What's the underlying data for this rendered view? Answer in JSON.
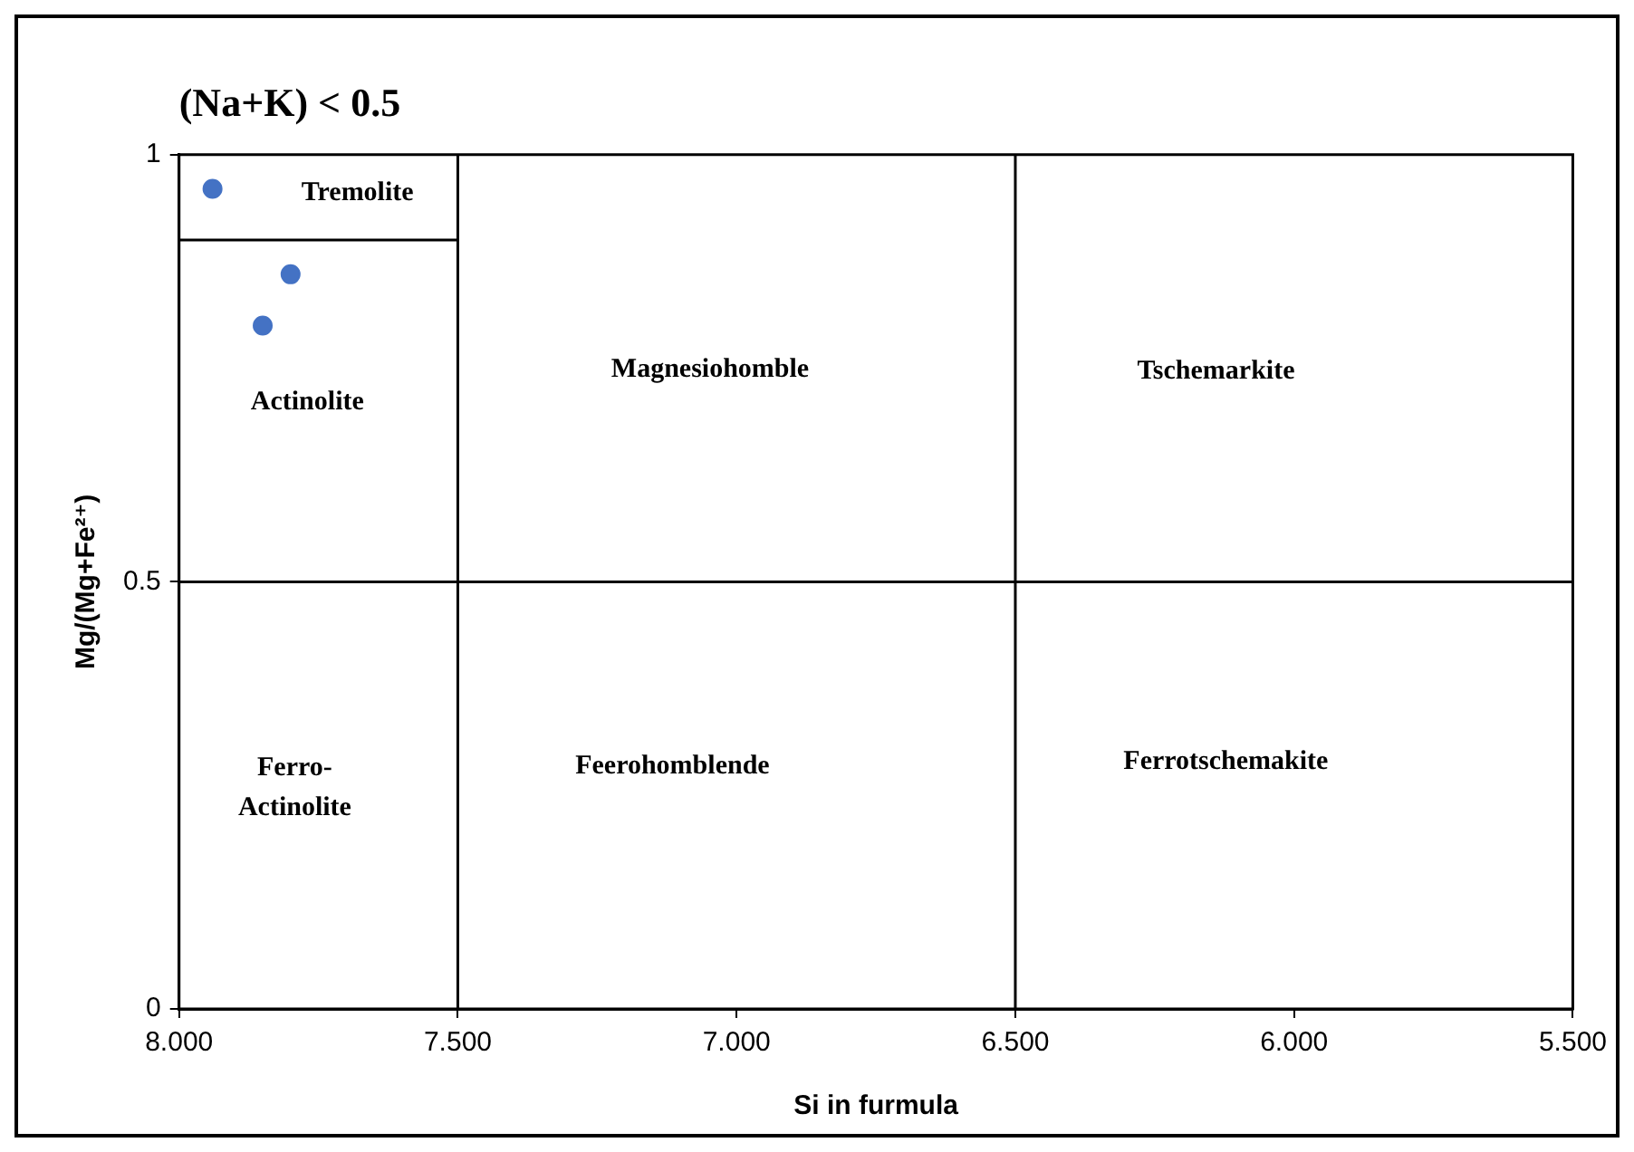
{
  "chart_data": {
    "type": "scatter",
    "title": "(Na+K) < 0.5",
    "xlabel": "Si in furmula",
    "ylabel": "Mg/(Mg+Fe²⁺)",
    "xlim": [
      8,
      5.5
    ],
    "xticks": [
      {
        "value": 8,
        "label": "8.000"
      },
      {
        "value": 7.5,
        "label": "7.500"
      },
      {
        "value": 7,
        "label": "7.000"
      },
      {
        "value": 6.5,
        "label": "6.500"
      },
      {
        "value": 6,
        "label": "6.000"
      },
      {
        "value": 5.5,
        "label": "5.500"
      }
    ],
    "ylim": [
      0,
      1
    ],
    "yticks": [
      0,
      0.5,
      1
    ],
    "grid": false,
    "series": [
      {
        "type": "scatter",
        "color": "#4472c4",
        "marker": "circle",
        "x": [
          7.94,
          7.8,
          7.85
        ],
        "values": [
          0.96,
          0.86,
          0.8
        ]
      },
      {
        "type": "line",
        "color": "#000000",
        "marker": "none",
        "line_style": "solid",
        "x": [
          8,
          7.5
        ],
        "values": [
          0.9,
          0.9
        ]
      }
    ],
    "ref_lines": [
      {
        "axis": "x",
        "value": 7.5,
        "color": "#000000"
      },
      {
        "axis": "x",
        "value": 6.5,
        "color": "#000000"
      },
      {
        "axis": "y",
        "value": 0.5,
        "color": "#000000"
      }
    ],
    "annotations": [
      "Tremolite",
      "Actinolite",
      "Magnesiohomble",
      "Tschemarkite",
      "Ferro-\nActinolite",
      "Feerohomblende",
      "Ferrotschemakite"
    ]
  }
}
